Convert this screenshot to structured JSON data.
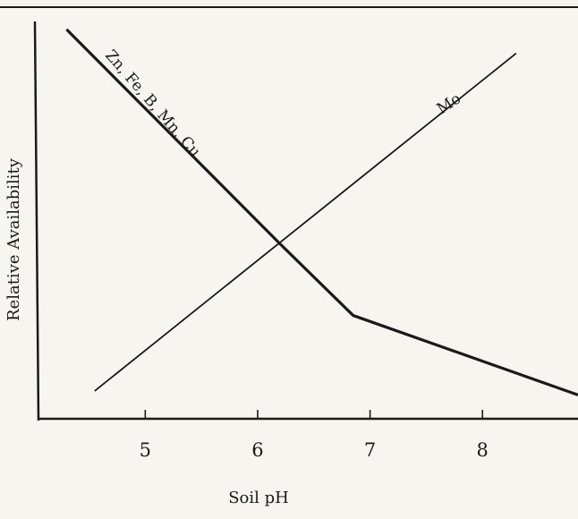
{
  "chart_data": {
    "type": "line",
    "title": "",
    "xlabel": "Soil pH",
    "ylabel": "Relative  Availability",
    "xlim": [
      4.05,
      8.85
    ],
    "ylim": [
      0,
      100
    ],
    "xticks": [
      5,
      6,
      7,
      8
    ],
    "xtick_labels": [
      "5",
      "6",
      "7",
      "8"
    ],
    "grid": false,
    "legend": "none",
    "series": [
      {
        "name": "Zn, Fe, B, Mn, Cu",
        "x": [
          4.3,
          6.2,
          6.85,
          8.85
        ],
        "y": [
          98,
          44,
          26,
          6
        ]
      },
      {
        "name": "Mo",
        "x": [
          4.55,
          8.3
        ],
        "y": [
          7,
          92
        ]
      }
    ],
    "colors": {
      "line": "#1a1a1a",
      "background": "#f7f5f0"
    }
  }
}
